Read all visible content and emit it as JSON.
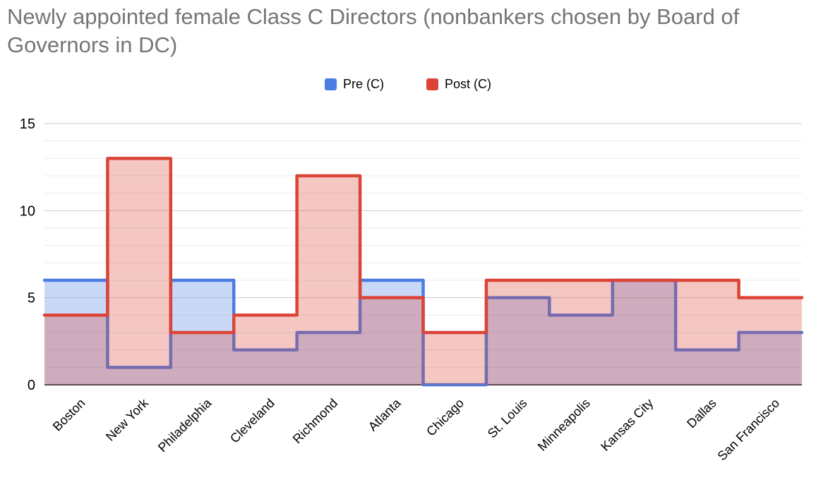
{
  "chart_data": {
    "type": "area",
    "stepped": true,
    "title": "Newly appointed female Class C Directors (nonbankers chosen by Board of Governors in DC)",
    "title_color": "#757575",
    "categories": [
      "Boston",
      "New York",
      "Philadelphia",
      "Cleveland",
      "Richmond",
      "Atlanta",
      "Chicago",
      "St. Louis",
      "Minneapolis",
      "Kansas City",
      "Dallas",
      "San Francisco"
    ],
    "series": [
      {
        "name": "Pre (C)",
        "color": "#4C7DE2",
        "fill_opacity": 0.3,
        "values": [
          6,
          1,
          6,
          2,
          3,
          6,
          0,
          5,
          4,
          6,
          2,
          3
        ]
      },
      {
        "name": "Post (C)",
        "color": "#DB4437",
        "fill_opacity": 0.3,
        "values": [
          4,
          13,
          3,
          4,
          12,
          5,
          3,
          6,
          6,
          6,
          6,
          5
        ]
      }
    ],
    "xlabel": "",
    "ylabel": "",
    "ylim": [
      0,
      15
    ],
    "yticks": [
      0,
      5,
      10,
      15
    ],
    "ytick_labels": [
      "0",
      "5",
      "10",
      "15"
    ],
    "minor_grid_step": 1,
    "grid": {
      "minor_color": "#eaeaea",
      "major_color": "#cccccc",
      "baseline_color": "#424242"
    },
    "axis_text_color": "#000000",
    "legend_position": "top"
  }
}
